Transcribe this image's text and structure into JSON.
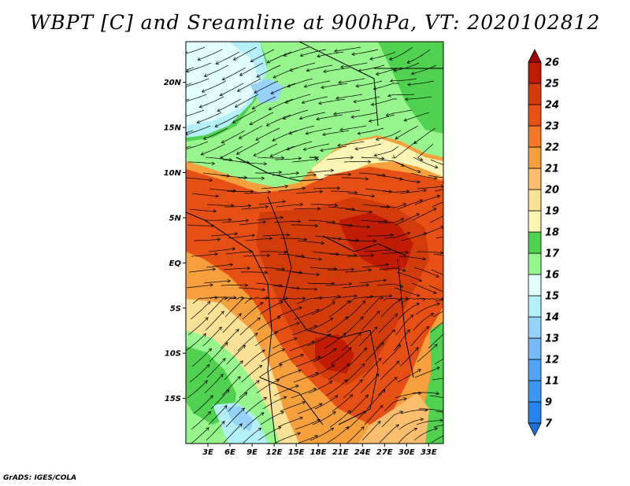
{
  "title": "WBPT [C] and Sreamline at 900hPa, VT: 2020102812",
  "footer": "GrADS: IGES/COLA",
  "lat_ticks": [
    {
      "lat": 20,
      "label": "20N"
    },
    {
      "lat": 15,
      "label": "15N"
    },
    {
      "lat": 10,
      "label": "10N"
    },
    {
      "lat": 5,
      "label": "5N"
    },
    {
      "lat": 0,
      "label": "EQ"
    },
    {
      "lat": -5,
      "label": "5S"
    },
    {
      "lat": -10,
      "label": "10S"
    },
    {
      "lat": -15,
      "label": "15S"
    }
  ],
  "lon_ticks": [
    {
      "lon": 3,
      "label": "3E"
    },
    {
      "lon": 6,
      "label": "6E"
    },
    {
      "lon": 9,
      "label": "9E"
    },
    {
      "lon": 12,
      "label": "12E"
    },
    {
      "lon": 15,
      "label": "15E"
    },
    {
      "lon": 18,
      "label": "18E"
    },
    {
      "lon": 21,
      "label": "21E"
    },
    {
      "lon": 24,
      "label": "24E"
    },
    {
      "lon": 27,
      "label": "27E"
    },
    {
      "lon": 30,
      "label": "30E"
    },
    {
      "lon": 33,
      "label": "33E"
    }
  ],
  "extent": {
    "lon_min": 0,
    "lon_max": 35,
    "lat_min": -20,
    "lat_max": 24.5
  },
  "colorbar": [
    {
      "label": "7",
      "color": "#1e6edc"
    },
    {
      "label": "9",
      "color": "#2882eb"
    },
    {
      "label": "11",
      "color": "#3c96f5"
    },
    {
      "label": "12",
      "color": "#50a5f5"
    },
    {
      "label": "13",
      "color": "#78b9fa"
    },
    {
      "label": "14",
      "color": "#96d2fa"
    },
    {
      "label": "15",
      "color": "#b4f0fa"
    },
    {
      "label": "16",
      "color": "#e1ffff"
    },
    {
      "label": "17",
      "color": "#96f58c"
    },
    {
      "label": "18",
      "color": "#50d250"
    },
    {
      "label": "19",
      "color": "#faf5b4"
    },
    {
      "label": "20",
      "color": "#fae196"
    },
    {
      "label": "21",
      "color": "#fabe6e"
    },
    {
      "label": "22",
      "color": "#f5a03c"
    },
    {
      "label": "23",
      "color": "#f07828"
    },
    {
      "label": "24",
      "color": "#e65014"
    },
    {
      "label": "25",
      "color": "#d23c0a"
    },
    {
      "label": "26",
      "color": "#c01c04"
    },
    {
      "label": "",
      "color": "#a00000"
    }
  ]
}
